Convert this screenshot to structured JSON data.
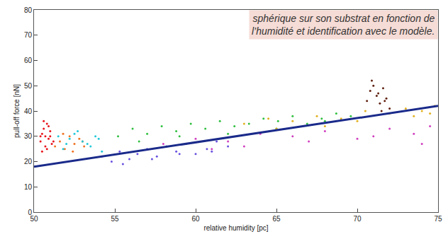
{
  "chart_data": {
    "type": "scatter",
    "annotations": [
      "sphérique sur son substrat en fonction de",
      "l’humidité et identification avec le modèle."
    ],
    "x_label": "relative humidity [pc]",
    "y_label": "pull-off force [nN]",
    "xlim": [
      50,
      75
    ],
    "xticks": [
      50,
      55,
      60,
      65,
      70,
      75
    ],
    "ylim": [
      0,
      80
    ],
    "yticks": [
      0,
      10,
      20,
      30,
      40,
      50,
      60,
      70,
      80
    ],
    "grid": false,
    "marker": "dot",
    "series": [
      {
        "color": "#e8141c",
        "x": [
          50.4,
          50.5,
          50.6,
          50.7,
          50.8,
          50.9,
          51.0,
          51.1,
          50.5,
          50.7,
          50.9,
          51.0,
          50.6,
          50.8,
          50.4,
          51.2
        ],
        "values": [
          28,
          31,
          33,
          30,
          35,
          29,
          32,
          27,
          24,
          26,
          34,
          30,
          36,
          25,
          30,
          28
        ]
      },
      {
        "color": "#f07020",
        "x": [
          51.3,
          51.6,
          51.9,
          52.2,
          52.5,
          52.8,
          53.1,
          51.8,
          52.4,
          53.0
        ],
        "values": [
          26,
          28,
          25,
          30,
          27,
          29,
          26,
          31,
          24,
          28
        ]
      },
      {
        "color": "#20c8d8",
        "x": [
          51.5,
          52.0,
          52.5,
          53.0,
          53.5,
          54.0,
          51.8,
          52.7,
          53.3,
          54.2,
          52.2,
          53.8
        ],
        "values": [
          30,
          27,
          31,
          28,
          26,
          29,
          25,
          32,
          27,
          24,
          29,
          30
        ]
      },
      {
        "color": "#6a50e0",
        "x": [
          54.2,
          54.8,
          55.3,
          55.9,
          56.4,
          57.0,
          57.6,
          58.2,
          58.8,
          59.4,
          60.0,
          60.7,
          61.3,
          62.0,
          55.5,
          57.3,
          59.0,
          61.0
        ],
        "values": [
          22,
          20,
          24,
          21,
          23,
          25,
          22,
          26,
          24,
          27,
          23,
          25,
          28,
          26,
          19,
          21,
          23,
          24
        ]
      },
      {
        "color": "#30c040",
        "x": [
          55.2,
          56.1,
          57.0,
          57.9,
          58.8,
          59.7,
          60.6,
          61.5,
          62.4,
          63.3,
          64.2,
          65.1,
          66.0,
          66.9,
          67.8,
          68.7,
          69.6,
          56.5,
          59.0,
          62.0,
          65.0,
          68.0
        ],
        "values": [
          30,
          33,
          31,
          34,
          32,
          35,
          33,
          36,
          34,
          35,
          37,
          36,
          38,
          35,
          37,
          39,
          38,
          28,
          30,
          31,
          33,
          36
        ]
      },
      {
        "color": "#d040c0",
        "x": [
          58,
          60,
          62,
          64,
          66,
          68,
          70,
          72,
          73.5,
          74.5,
          63,
          67,
          71,
          74,
          61
        ],
        "values": [
          27,
          29,
          28,
          31,
          30,
          32,
          29,
          33,
          31,
          34,
          26,
          28,
          30,
          27,
          25
        ]
      },
      {
        "color": "#e0b020",
        "x": [
          63,
          64.5,
          66,
          67.5,
          69,
          70.5,
          72,
          73,
          74,
          74.8,
          65,
          70,
          73.5,
          74.5,
          68
        ],
        "values": [
          35,
          37,
          36,
          38,
          37,
          40,
          39,
          41,
          40,
          42,
          33,
          36,
          38,
          39,
          34
        ]
      },
      {
        "color": "#602010",
        "x": [
          70.6,
          70.8,
          71.0,
          71.2,
          71.4,
          71.6,
          71.8,
          72.0,
          70.9,
          71.3,
          71.5,
          71.7
        ],
        "values": [
          44,
          48,
          50,
          46,
          43,
          49,
          45,
          41,
          52,
          47,
          40,
          44
        ]
      },
      {
        "type": "line",
        "color": "#1a2a8a",
        "line_style": "solid",
        "x": [
          50,
          75
        ],
        "values": [
          18,
          42
        ]
      }
    ]
  }
}
